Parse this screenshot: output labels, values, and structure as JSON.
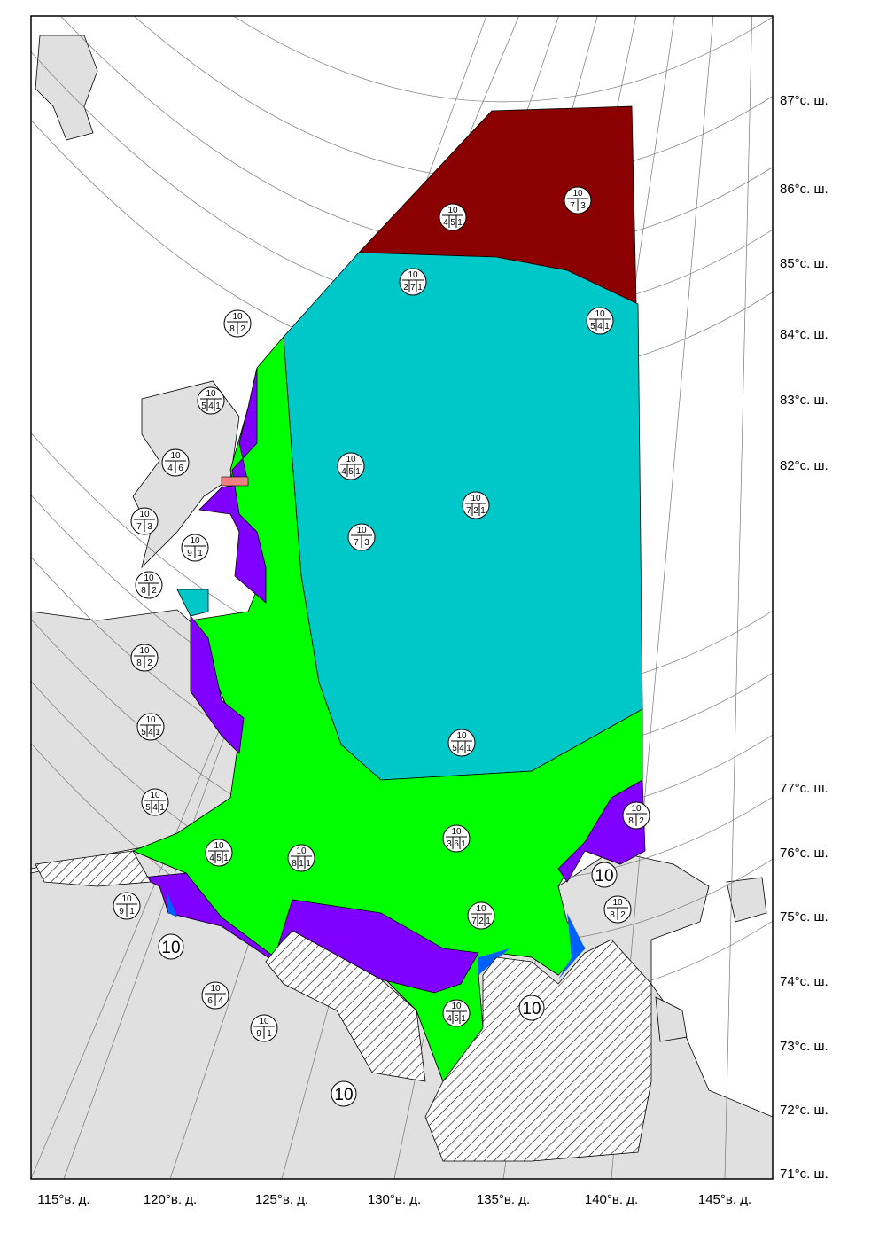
{
  "lat_labels": [
    "87°с. ш.",
    "86°с. ш.",
    "85°с. ш.",
    "84°с. ш.",
    "83°с. ш.",
    "82°с. ш.",
    "77°с. ш.",
    "76°с. ш.",
    "75°с. ш.",
    "74°с. ш.",
    "73°с. ш.",
    "72°с. ш.",
    "71°с. ш."
  ],
  "lon_labels": [
    "115°в. д.",
    "120°в. д.",
    "125°в. д.",
    "130°в. д.",
    "135°в. д.",
    "140°в. д.",
    "145°в. д."
  ],
  "fast_ice_labels": [
    "10",
    "10",
    "10",
    "10"
  ],
  "egg_codes": [
    {
      "total": "10",
      "partial": [
        "8",
        "2"
      ]
    },
    {
      "total": "10",
      "partial": [
        "5",
        "4",
        "1"
      ]
    },
    {
      "total": "10",
      "partial": [
        "4",
        "6"
      ]
    },
    {
      "total": "10",
      "partial": [
        "7",
        "3"
      ]
    },
    {
      "total": "10",
      "partial": [
        "9",
        "1"
      ]
    },
    {
      "total": "10",
      "partial": [
        "8",
        "2"
      ]
    },
    {
      "total": "10",
      "partial": [
        "8",
        "2"
      ]
    },
    {
      "total": "10",
      "partial": [
        "5",
        "4",
        "1"
      ]
    },
    {
      "total": "10",
      "partial": [
        "5",
        "4",
        "1"
      ]
    },
    {
      "total": "10",
      "partial": [
        "4",
        "5",
        "1"
      ]
    },
    {
      "total": "10",
      "partial": [
        "8",
        "1",
        "1"
      ]
    },
    {
      "total": "10",
      "partial": [
        "9",
        "1"
      ]
    },
    {
      "total": "10",
      "partial": [
        "6",
        "4"
      ]
    },
    {
      "total": "10",
      "partial": [
        "9",
        "1"
      ]
    },
    {
      "total": "10",
      "partial": [
        "2",
        "7",
        "1"
      ]
    },
    {
      "total": "10",
      "partial": [
        "4",
        "5",
        "1"
      ]
    },
    {
      "total": "10",
      "partial": [
        "7",
        "3"
      ]
    },
    {
      "total": "10",
      "partial": [
        "5",
        "4",
        "1"
      ]
    },
    {
      "total": "10",
      "partial": [
        "4",
        "5",
        "1"
      ]
    },
    {
      "total": "10",
      "partial": [
        "7",
        "2",
        "1"
      ]
    },
    {
      "total": "10",
      "partial": [
        "7",
        "3"
      ]
    },
    {
      "total": "10",
      "partial": [
        "5",
        "4",
        "1"
      ]
    },
    {
      "total": "10",
      "partial": [
        "3",
        "6",
        "1"
      ]
    },
    {
      "total": "10",
      "partial": [
        "7",
        "2",
        "1"
      ]
    },
    {
      "total": "10",
      "partial": [
        "8",
        "2"
      ]
    },
    {
      "total": "10",
      "partial": [
        "8",
        "2"
      ]
    },
    {
      "total": "10",
      "partial": [
        "4",
        "5",
        "1"
      ]
    }
  ]
}
